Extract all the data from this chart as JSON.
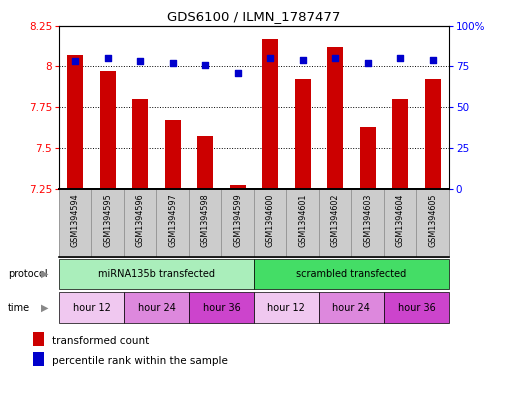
{
  "title": "GDS6100 / ILMN_1787477",
  "samples": [
    "GSM1394594",
    "GSM1394595",
    "GSM1394596",
    "GSM1394597",
    "GSM1394598",
    "GSM1394599",
    "GSM1394600",
    "GSM1394601",
    "GSM1394602",
    "GSM1394603",
    "GSM1394604",
    "GSM1394605"
  ],
  "transformed_counts": [
    8.07,
    7.97,
    7.8,
    7.67,
    7.57,
    7.27,
    8.17,
    7.92,
    8.12,
    7.63,
    7.8,
    7.92
  ],
  "percentile_ranks": [
    78,
    80,
    78,
    77,
    76,
    71,
    80,
    79,
    80,
    77,
    80,
    79
  ],
  "bar_color": "#cc0000",
  "dot_color": "#0000cc",
  "ymin": 7.25,
  "ymax": 8.25,
  "yticks": [
    7.25,
    7.5,
    7.75,
    8.0,
    8.25
  ],
  "ytick_labels": [
    "7.25",
    "7.5",
    "7.75",
    "8",
    "8.25"
  ],
  "y2min": 0,
  "y2max": 100,
  "y2ticks": [
    0,
    25,
    50,
    75,
    100
  ],
  "y2ticklabels": [
    "0",
    "25",
    "50",
    "75",
    "100%"
  ],
  "protocol_groups": [
    {
      "label": "miRNA135b transfected",
      "start": 0,
      "end": 6,
      "color": "#aaeebb"
    },
    {
      "label": "scrambled transfected",
      "start": 6,
      "end": 12,
      "color": "#44dd66"
    }
  ],
  "time_groups": [
    {
      "label": "hour 12",
      "start": 0,
      "end": 2,
      "color": "#f0c8f0"
    },
    {
      "label": "hour 24",
      "start": 2,
      "end": 4,
      "color": "#dd88dd"
    },
    {
      "label": "hour 36",
      "start": 4,
      "end": 6,
      "color": "#cc44cc"
    },
    {
      "label": "hour 12",
      "start": 6,
      "end": 8,
      "color": "#f0c8f0"
    },
    {
      "label": "hour 24",
      "start": 8,
      "end": 10,
      "color": "#dd88dd"
    },
    {
      "label": "hour 36",
      "start": 10,
      "end": 12,
      "color": "#cc44cc"
    }
  ],
  "sample_bg_color": "#cccccc",
  "sample_border_color": "#999999"
}
